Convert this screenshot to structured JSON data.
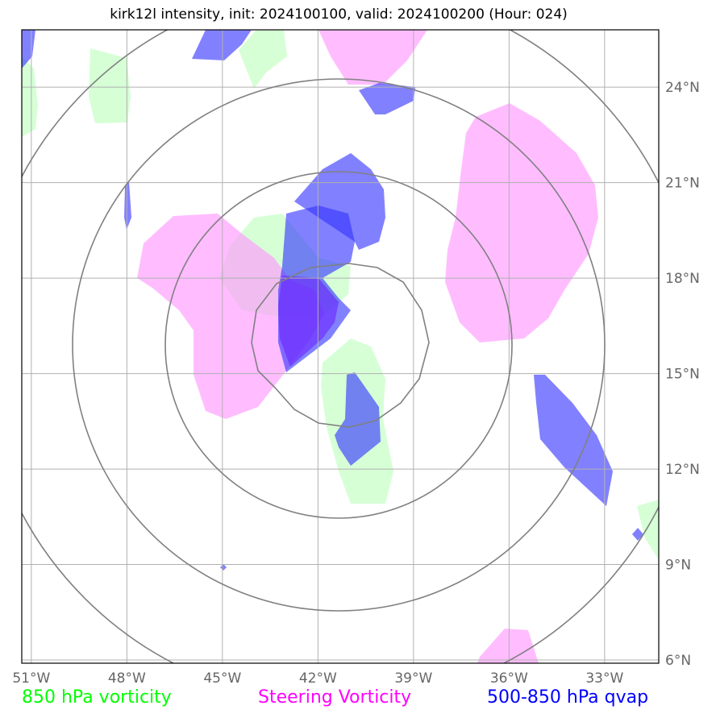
{
  "title": "kirk12l intensity, init: 2024100100, valid: 2024100200 (Hour: 024)",
  "map": {
    "lon_range": [
      -51.3,
      -31.3
    ],
    "lat_range": [
      5.9,
      25.8
    ],
    "lon_ticks": [
      {
        "value": -51,
        "label": "51°W"
      },
      {
        "value": -48,
        "label": "48°W"
      },
      {
        "value": -45,
        "label": "45°W"
      },
      {
        "value": -42,
        "label": "42°W"
      },
      {
        "value": -39,
        "label": "39°W"
      },
      {
        "value": -36,
        "label": "36°W"
      },
      {
        "value": -33,
        "label": "33°W"
      }
    ],
    "lat_ticks": [
      {
        "value": 24,
        "label": "24°N"
      },
      {
        "value": 21,
        "label": "21°N"
      },
      {
        "value": 18,
        "label": "18°N"
      },
      {
        "value": 15,
        "label": "15°N"
      },
      {
        "value": 12,
        "label": "12°N"
      },
      {
        "value": 9,
        "label": "9°N"
      },
      {
        "value": 6,
        "label": "6°N"
      }
    ],
    "grid": true,
    "storm_center": {
      "lon": -40.9,
      "lat": 16.0
    }
  },
  "legend": [
    {
      "label": "850 hPa vorticity",
      "color": "#00ff00"
    },
    {
      "label": "Steering Vorticity",
      "color": "#ff00ff"
    },
    {
      "label": "500-850 hPa qvap",
      "color": "#0000ff"
    }
  ]
}
